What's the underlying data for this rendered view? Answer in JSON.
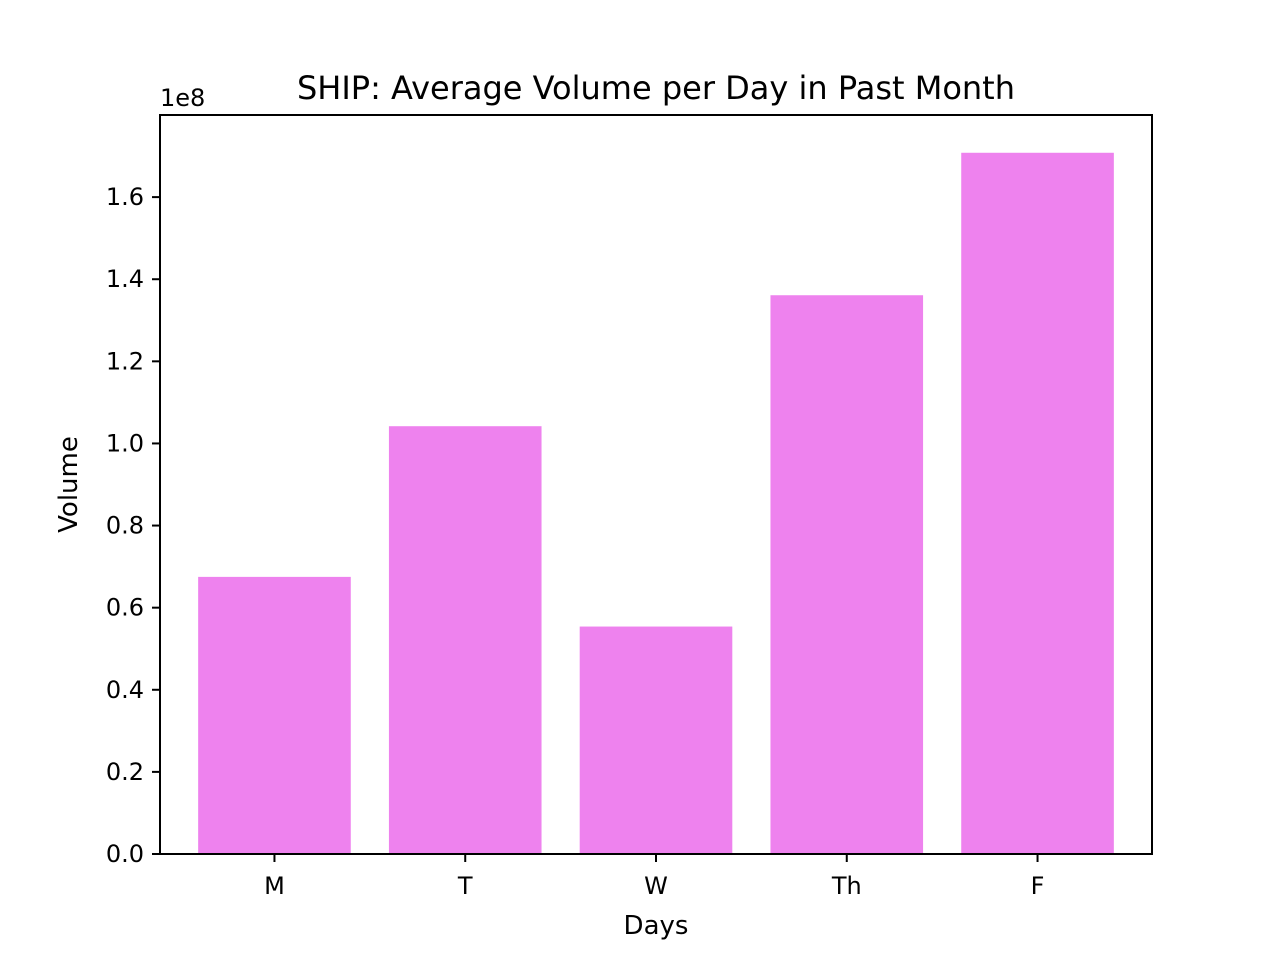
{
  "chart_data": {
    "type": "bar",
    "title": "SHIP: Average Volume per Day in Past Month",
    "xlabel": "Days",
    "ylabel": "Volume",
    "offset_label": "1e8",
    "categories": [
      "M",
      "T",
      "W",
      "Th",
      "F"
    ],
    "values": [
      67500000,
      104200000,
      55400000,
      136100000,
      170800000
    ],
    "ylim": [
      0,
      180000000
    ],
    "yticks": [
      0,
      20000000,
      40000000,
      60000000,
      80000000,
      100000000,
      120000000,
      140000000,
      160000000
    ],
    "ytick_labels": [
      "0.0",
      "0.2",
      "0.4",
      "0.6",
      "0.8",
      "1.0",
      "1.2",
      "1.4",
      "1.6"
    ],
    "bar_color": "#ee82ee",
    "grid": false,
    "legend": "none"
  }
}
